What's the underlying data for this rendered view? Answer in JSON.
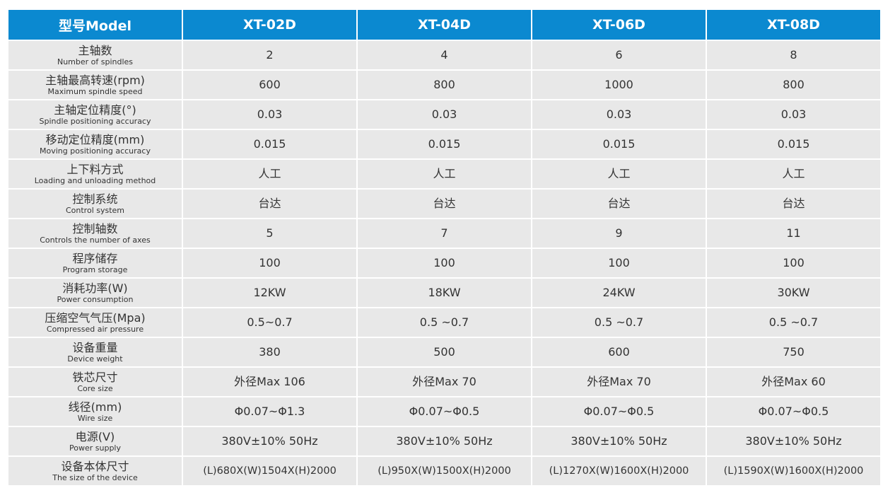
{
  "table": {
    "header": [
      "型号Model",
      "XT-02D",
      "XT-04D",
      "XT-06D",
      "XT-08D"
    ],
    "rows": [
      {
        "label_cn": "主轴数",
        "label_en": "Number of spindles",
        "values": [
          "2",
          "4",
          "6",
          "8"
        ]
      },
      {
        "label_cn": "主轴最高转速(rpm)",
        "label_en": "Maximum spindle speed",
        "values": [
          "600",
          "800",
          "1000",
          "800"
        ]
      },
      {
        "label_cn": "主轴定位精度(°)",
        "label_en": "Spindle positioning accuracy",
        "values": [
          "0.03",
          "0.03",
          "0.03",
          "0.03"
        ]
      },
      {
        "label_cn": "移动定位精度(mm)",
        "label_en": "Moving positioning accuracy",
        "values": [
          "0.015",
          "0.015",
          "0.015",
          "0.015"
        ]
      },
      {
        "label_cn": "上下料方式",
        "label_en": "Loading and unloading method",
        "values": [
          "人工",
          "人工",
          "人工",
          "人工"
        ]
      },
      {
        "label_cn": "控制系统",
        "label_en": "Control system",
        "values": [
          "台达",
          "台达",
          "台达",
          "台达"
        ]
      },
      {
        "label_cn": "控制轴数",
        "label_en": "Controls the number of axes",
        "values": [
          "5",
          "7",
          "9",
          "11"
        ]
      },
      {
        "label_cn": "程序储存",
        "label_en": "Program storage",
        "values": [
          "100",
          "100",
          "100",
          "100"
        ]
      },
      {
        "label_cn": "消耗功率(W)",
        "label_en": "Power consumption",
        "values": [
          "12KW",
          "18KW",
          "24KW",
          "30KW"
        ]
      },
      {
        "label_cn": "压缩空气气压(Mpa)",
        "label_en": "Compressed air pressure",
        "values": [
          "0.5~0.7",
          "0.5 ~0.7",
          "0.5 ~0.7",
          "0.5 ~0.7"
        ]
      },
      {
        "label_cn": "设备重量",
        "label_en": "Device weight",
        "values": [
          "380",
          "500",
          "600",
          "750"
        ]
      },
      {
        "label_cn": "铁芯尺寸",
        "label_en": "Core size",
        "values": [
          "外径Max 106",
          "外径Max 70",
          "外径Max 70",
          "外径Max 60"
        ]
      },
      {
        "label_cn": "线径(mm)",
        "label_en": "Wire size",
        "values": [
          "Φ0.07~Φ1.3",
          "Φ0.07~Φ0.5",
          "Φ0.07~Φ0.5",
          "Φ0.07~Φ0.5"
        ]
      },
      {
        "label_cn": "电源(V)",
        "label_en": "Power supply",
        "values": [
          "380V±10% 50Hz",
          "380V±10% 50Hz",
          "380V±10% 50Hz",
          "380V±10% 50Hz"
        ]
      },
      {
        "label_cn": "设备本体尺寸",
        "label_en": "The size of the device",
        "values": [
          "(L)680X(W)1504X(H)2000",
          "(L)950X(W)1500X(H)2000",
          "(L)1270X(W)1600X(H)2000",
          "(L)1590X(W)1600X(H)2000"
        ]
      }
    ]
  },
  "colors": {
    "header_bg": "#0b89d0",
    "header_text": "#ffffff",
    "cell_bg": "#e8e8e8",
    "cell_text": "#333333"
  }
}
